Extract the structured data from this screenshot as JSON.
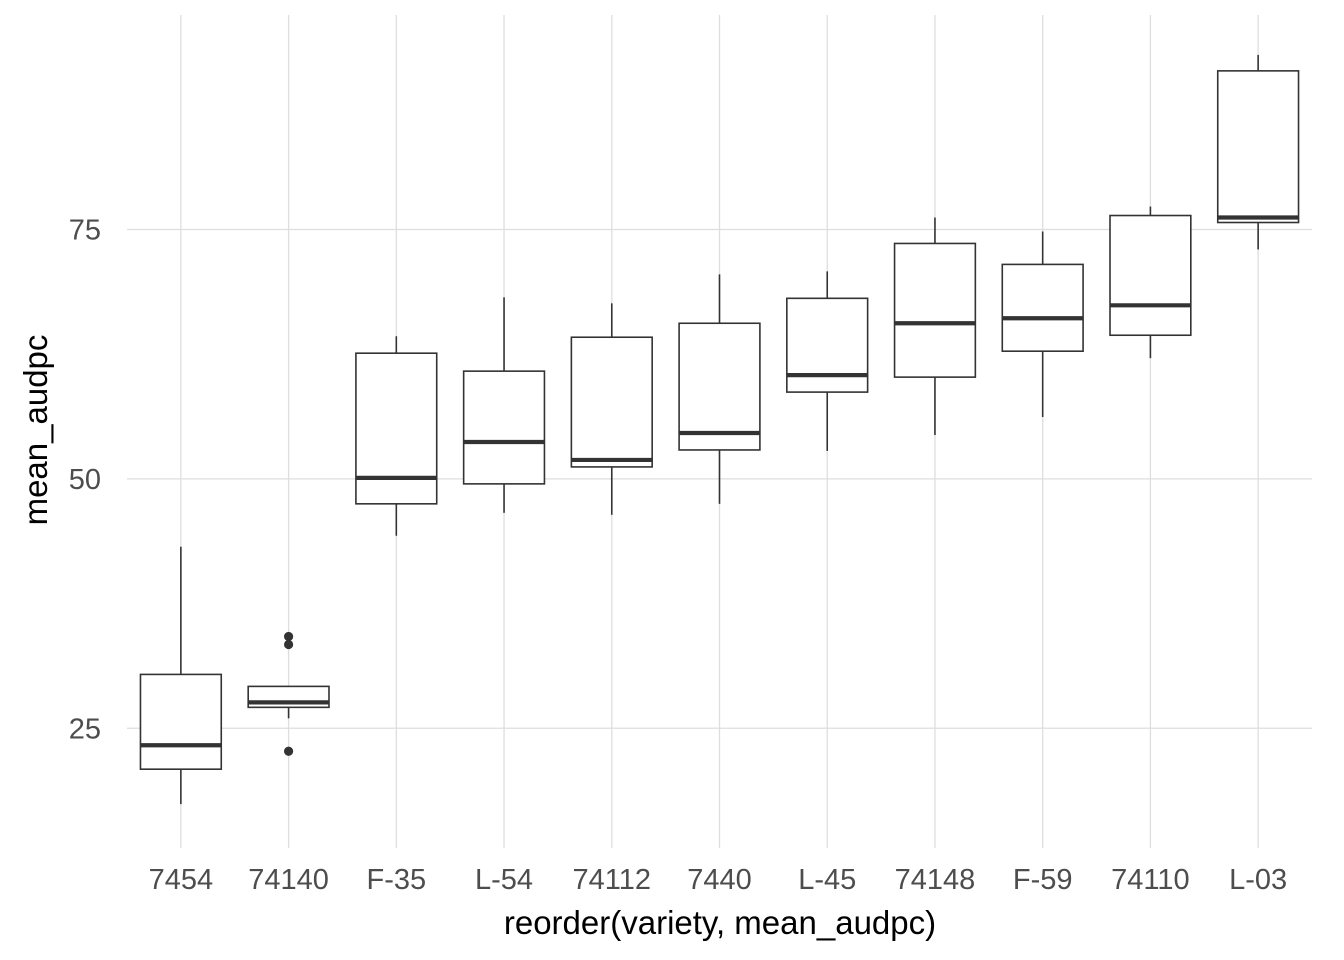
{
  "chart_data": {
    "type": "boxplot",
    "xlabel": "reorder(variety, mean_audpc)",
    "ylabel": "mean_audpc",
    "ylim": [
      13,
      96.5
    ],
    "grid": true,
    "y_ticks": [
      25,
      50,
      75
    ],
    "categories": [
      "7454",
      "74140",
      "F-35",
      "L-54",
      "74112",
      "7440",
      "L-45",
      "74148",
      "F-59",
      "74110",
      "L-03"
    ],
    "boxes": [
      {
        "category": "7454",
        "whisker_low": 17.4,
        "q1": 20.9,
        "median": 23.3,
        "q3": 30.4,
        "whisker_high": 43.2,
        "outliers": []
      },
      {
        "category": "74140",
        "whisker_low": 26.0,
        "q1": 27.1,
        "median": 27.6,
        "q3": 29.2,
        "whisker_high": 29.2,
        "outliers": [
          34.2,
          33.4,
          22.7
        ]
      },
      {
        "category": "F-35",
        "whisker_low": 44.3,
        "q1": 47.5,
        "median": 50.1,
        "q3": 62.6,
        "whisker_high": 64.3,
        "outliers": []
      },
      {
        "category": "L-54",
        "whisker_low": 46.6,
        "q1": 49.5,
        "median": 53.7,
        "q3": 60.8,
        "whisker_high": 68.2,
        "outliers": []
      },
      {
        "category": "74112",
        "whisker_low": 46.4,
        "q1": 51.2,
        "median": 51.9,
        "q3": 64.2,
        "whisker_high": 67.6,
        "outliers": []
      },
      {
        "category": "7440",
        "whisker_low": 47.5,
        "q1": 52.9,
        "median": 54.6,
        "q3": 65.6,
        "whisker_high": 70.5,
        "outliers": []
      },
      {
        "category": "L-45",
        "whisker_low": 52.8,
        "q1": 58.7,
        "median": 60.4,
        "q3": 68.1,
        "whisker_high": 70.8,
        "outliers": []
      },
      {
        "category": "74148",
        "whisker_low": 54.4,
        "q1": 60.2,
        "median": 65.6,
        "q3": 73.6,
        "whisker_high": 76.2,
        "outliers": []
      },
      {
        "category": "F-59",
        "whisker_low": 56.2,
        "q1": 62.8,
        "median": 66.1,
        "q3": 71.5,
        "whisker_high": 74.8,
        "outliers": []
      },
      {
        "category": "74110",
        "whisker_low": 62.1,
        "q1": 64.4,
        "median": 67.4,
        "q3": 76.4,
        "whisker_high": 77.3,
        "outliers": []
      },
      {
        "category": "L-03",
        "whisker_low": 73.0,
        "q1": 75.7,
        "median": 76.2,
        "q3": 90.9,
        "whisker_high": 92.5,
        "outliers": []
      }
    ]
  },
  "colors": {
    "background": "#ffffff",
    "grid": "#dedede",
    "box_stroke": "#333333",
    "tick_text": "#4d4d4d",
    "title_text": "#000000"
  }
}
